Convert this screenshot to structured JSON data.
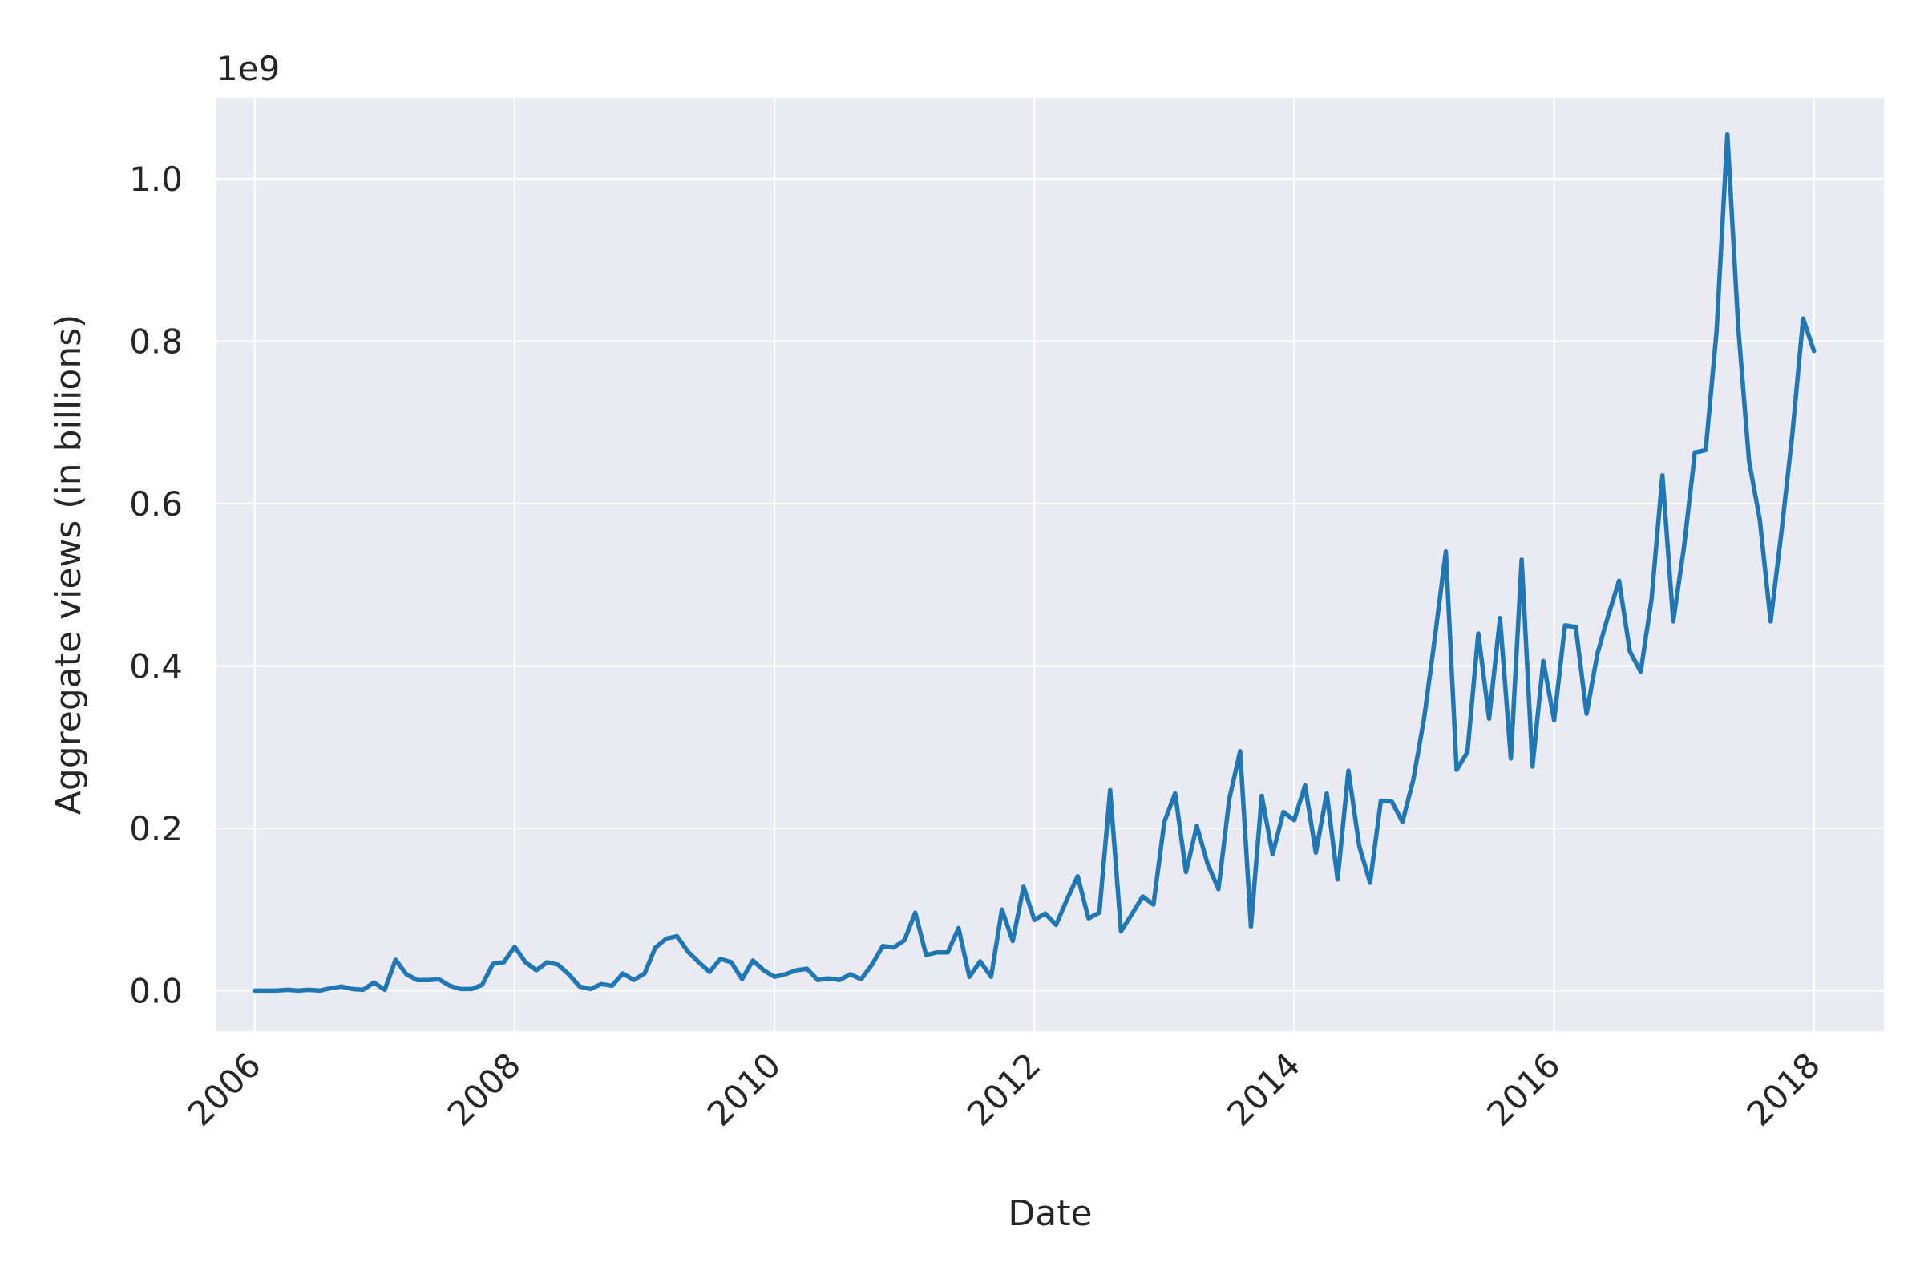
{
  "chart_data": {
    "type": "line",
    "xlabel": "Date",
    "ylabel": "Aggregate views (in billions)",
    "y_offset_label": "1e9",
    "x_axis_kind": "date",
    "x_tick_labels": [
      "2006",
      "2008",
      "2010",
      "2012",
      "2014",
      "2016",
      "2018"
    ],
    "x_tick_values": [
      "2006-01-01",
      "2008-01-01",
      "2010-01-01",
      "2012-01-01",
      "2014-01-01",
      "2016-01-01",
      "2018-01-01"
    ],
    "y_tick_labels": [
      "0.0",
      "0.2",
      "0.4",
      "0.6",
      "0.8",
      "1.0"
    ],
    "y_tick_values": [
      0,
      200000000,
      400000000,
      600000000,
      800000000,
      1000000000
    ],
    "xlim": [
      "2005-09-15",
      "2018-07-15"
    ],
    "ylim": [
      -50000000,
      1100000000
    ],
    "grid": true,
    "line_color": "#1F77B4",
    "series": [
      {
        "values": [
          [
            "2006-01",
            0
          ],
          [
            "2006-02",
            0
          ],
          [
            "2006-03",
            0
          ],
          [
            "2006-04",
            1000000
          ],
          [
            "2006-05",
            0
          ],
          [
            "2006-06",
            1000000
          ],
          [
            "2006-07",
            0
          ],
          [
            "2006-08",
            3000000
          ],
          [
            "2006-09",
            5000000
          ],
          [
            "2006-10",
            2000000
          ],
          [
            "2006-11",
            1000000
          ],
          [
            "2006-12",
            10000000
          ],
          [
            "2007-01",
            1000000
          ],
          [
            "2007-02",
            38000000
          ],
          [
            "2007-03",
            20000000
          ],
          [
            "2007-04",
            13000000
          ],
          [
            "2007-05",
            13000000
          ],
          [
            "2007-06",
            14000000
          ],
          [
            "2007-07",
            6000000
          ],
          [
            "2007-08",
            2000000
          ],
          [
            "2007-09",
            2000000
          ],
          [
            "2007-10",
            7000000
          ],
          [
            "2007-11",
            33000000
          ],
          [
            "2007-12",
            35000000
          ],
          [
            "2008-01",
            54000000
          ],
          [
            "2008-02",
            35000000
          ],
          [
            "2008-03",
            25000000
          ],
          [
            "2008-04",
            35000000
          ],
          [
            "2008-05",
            32000000
          ],
          [
            "2008-06",
            20000000
          ],
          [
            "2008-07",
            5000000
          ],
          [
            "2008-08",
            2000000
          ],
          [
            "2008-09",
            8000000
          ],
          [
            "2008-10",
            6000000
          ],
          [
            "2008-11",
            21000000
          ],
          [
            "2008-12",
            13000000
          ],
          [
            "2009-01",
            21000000
          ],
          [
            "2009-02",
            53000000
          ],
          [
            "2009-03",
            64000000
          ],
          [
            "2009-04",
            67000000
          ],
          [
            "2009-05",
            48000000
          ],
          [
            "2009-06",
            35000000
          ],
          [
            "2009-07",
            23000000
          ],
          [
            "2009-08",
            39000000
          ],
          [
            "2009-09",
            35000000
          ],
          [
            "2009-10",
            14000000
          ],
          [
            "2009-11",
            37000000
          ],
          [
            "2009-12",
            25000000
          ],
          [
            "2010-01",
            17000000
          ],
          [
            "2010-02",
            20000000
          ],
          [
            "2010-03",
            25000000
          ],
          [
            "2010-04",
            27000000
          ],
          [
            "2010-05",
            13000000
          ],
          [
            "2010-06",
            15000000
          ],
          [
            "2010-07",
            13000000
          ],
          [
            "2010-08",
            20000000
          ],
          [
            "2010-09",
            14000000
          ],
          [
            "2010-10",
            32000000
          ],
          [
            "2010-11",
            55000000
          ],
          [
            "2010-12",
            53000000
          ],
          [
            "2011-01",
            62000000
          ],
          [
            "2011-02",
            96000000
          ],
          [
            "2011-03",
            44000000
          ],
          [
            "2011-04",
            47000000
          ],
          [
            "2011-05",
            47000000
          ],
          [
            "2011-06",
            77000000
          ],
          [
            "2011-07",
            17000000
          ],
          [
            "2011-08",
            36000000
          ],
          [
            "2011-09",
            17000000
          ],
          [
            "2011-10",
            100000000
          ],
          [
            "2011-11",
            61000000
          ],
          [
            "2011-12",
            128000000
          ],
          [
            "2012-01",
            87000000
          ],
          [
            "2012-02",
            95000000
          ],
          [
            "2012-03",
            81000000
          ],
          [
            "2012-04",
            112000000
          ],
          [
            "2012-05",
            141000000
          ],
          [
            "2012-06",
            89000000
          ],
          [
            "2012-07",
            96000000
          ],
          [
            "2012-08",
            247000000
          ],
          [
            "2012-09",
            73000000
          ],
          [
            "2012-10",
            94000000
          ],
          [
            "2012-11",
            116000000
          ],
          [
            "2012-12",
            106000000
          ],
          [
            "2013-01",
            208000000
          ],
          [
            "2013-02",
            243000000
          ],
          [
            "2013-03",
            146000000
          ],
          [
            "2013-04",
            203000000
          ],
          [
            "2013-05",
            156000000
          ],
          [
            "2013-06",
            125000000
          ],
          [
            "2013-07",
            236000000
          ],
          [
            "2013-08",
            295000000
          ],
          [
            "2013-09",
            79000000
          ],
          [
            "2013-10",
            240000000
          ],
          [
            "2013-11",
            168000000
          ],
          [
            "2013-12",
            220000000
          ],
          [
            "2014-01",
            210000000
          ],
          [
            "2014-02",
            253000000
          ],
          [
            "2014-03",
            170000000
          ],
          [
            "2014-04",
            243000000
          ],
          [
            "2014-05",
            137000000
          ],
          [
            "2014-06",
            271000000
          ],
          [
            "2014-07",
            178000000
          ],
          [
            "2014-08",
            133000000
          ],
          [
            "2014-09",
            234000000
          ],
          [
            "2014-10",
            233000000
          ],
          [
            "2014-11",
            208000000
          ],
          [
            "2014-12",
            260000000
          ],
          [
            "2015-01",
            336000000
          ],
          [
            "2015-02",
            436000000
          ],
          [
            "2015-03",
            541000000
          ],
          [
            "2015-04",
            272000000
          ],
          [
            "2015-05",
            294000000
          ],
          [
            "2015-06",
            440000000
          ],
          [
            "2015-07",
            335000000
          ],
          [
            "2015-08",
            459000000
          ],
          [
            "2015-09",
            286000000
          ],
          [
            "2015-10",
            531000000
          ],
          [
            "2015-11",
            276000000
          ],
          [
            "2015-12",
            406000000
          ],
          [
            "2016-01",
            333000000
          ],
          [
            "2016-02",
            450000000
          ],
          [
            "2016-03",
            448000000
          ],
          [
            "2016-04",
            341000000
          ],
          [
            "2016-05",
            415000000
          ],
          [
            "2016-06",
            462000000
          ],
          [
            "2016-07",
            505000000
          ],
          [
            "2016-08",
            418000000
          ],
          [
            "2016-09",
            393000000
          ],
          [
            "2016-10",
            482000000
          ],
          [
            "2016-11",
            635000000
          ],
          [
            "2016-12",
            455000000
          ],
          [
            "2017-01",
            547000000
          ],
          [
            "2017-02",
            663000000
          ],
          [
            "2017-03",
            666000000
          ],
          [
            "2017-04",
            812000000
          ],
          [
            "2017-05",
            1055000000
          ],
          [
            "2017-06",
            818000000
          ],
          [
            "2017-07",
            653000000
          ],
          [
            "2017-08",
            580000000
          ],
          [
            "2017-09",
            455000000
          ],
          [
            "2017-10",
            565000000
          ],
          [
            "2017-11",
            685000000
          ],
          [
            "2017-12",
            828000000
          ],
          [
            "2018-01",
            788000000
          ]
        ]
      }
    ]
  }
}
